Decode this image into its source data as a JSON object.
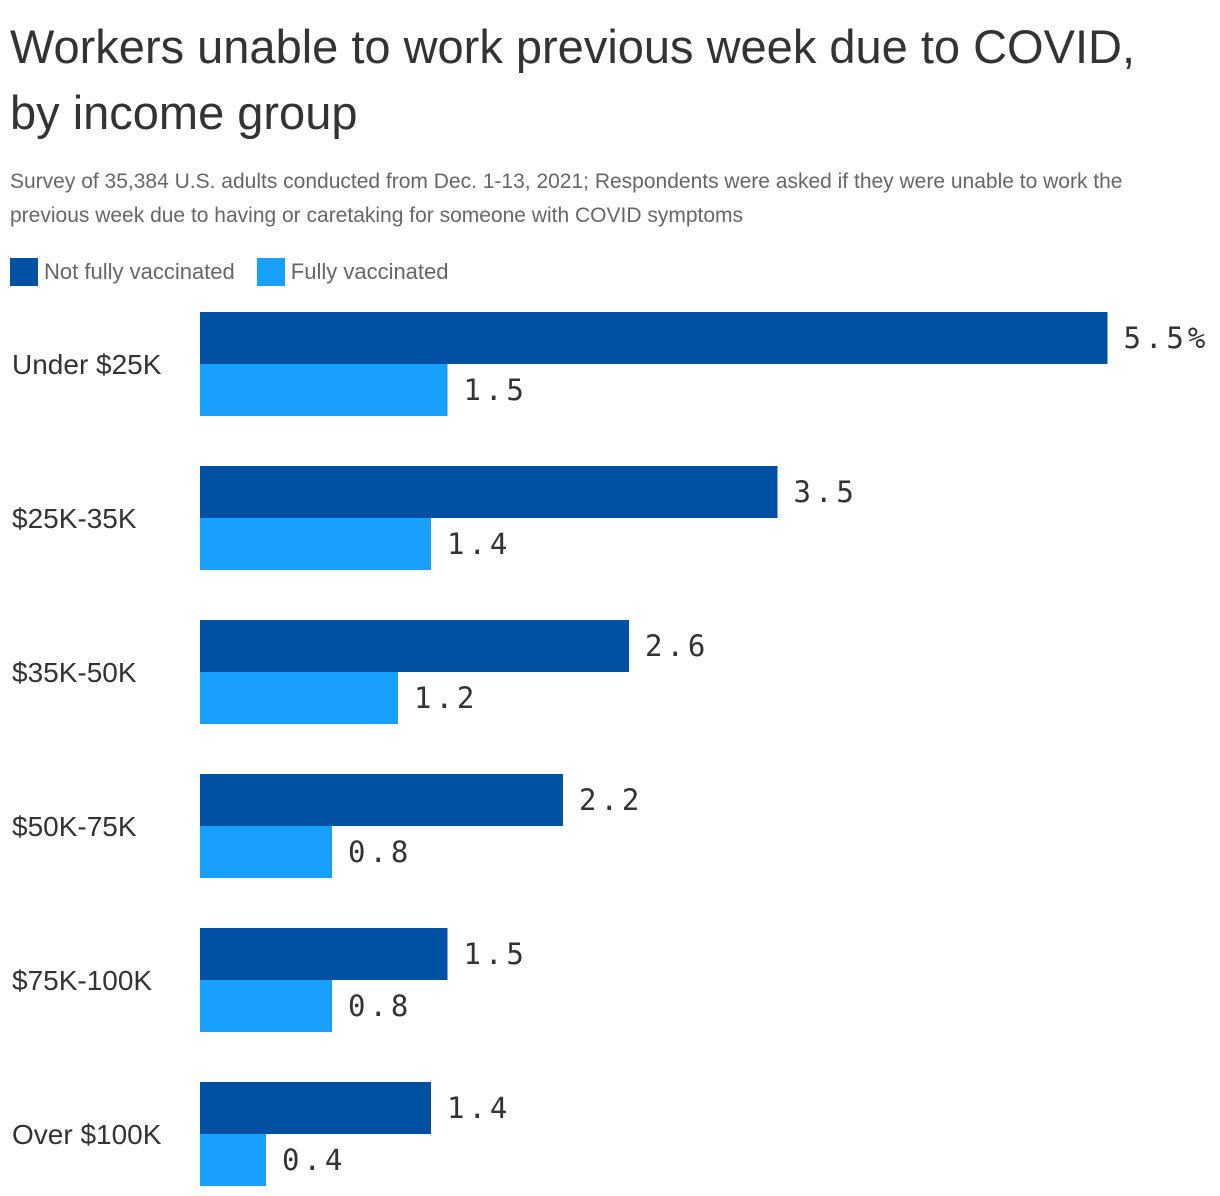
{
  "title": "Workers unable to work previous week due to COVID, by income group",
  "subtitle": "Survey of 35,384 U.S. adults conducted from Dec. 1-13, 2021; Respondents were asked if they were unable to work the previous week due to having or caretaking for someone with COVID symptoms",
  "colors": {
    "not_fully_vaccinated": "#0050a3",
    "fully_vaccinated": "#19a0ff",
    "text": "#333333",
    "muted_text": "#666666"
  },
  "chart_data": {
    "type": "bar",
    "orientation": "horizontal",
    "categories": [
      "Under $25K",
      "$25K-35K",
      "$35K-50K",
      "$50K-75K",
      "$75K-100K",
      "Over $100K"
    ],
    "series": [
      {
        "name": "Not fully vaccinated",
        "values": [
          5.5,
          3.5,
          2.6,
          2.2,
          1.5,
          1.4
        ],
        "labels": [
          "5.5%",
          "3.5",
          "2.6",
          "2.2",
          "1.5",
          "1.4"
        ],
        "color": "#0050a3"
      },
      {
        "name": "Fully vaccinated",
        "values": [
          1.5,
          1.4,
          1.2,
          0.8,
          0.8,
          0.4
        ],
        "labels": [
          "1.5",
          "1.4",
          "1.2",
          "0.8",
          "0.8",
          "0.4"
        ],
        "color": "#19a0ff"
      }
    ],
    "unit": "%",
    "xlim": [
      0,
      5.5
    ],
    "grid": false,
    "legend_position": "top-left"
  }
}
